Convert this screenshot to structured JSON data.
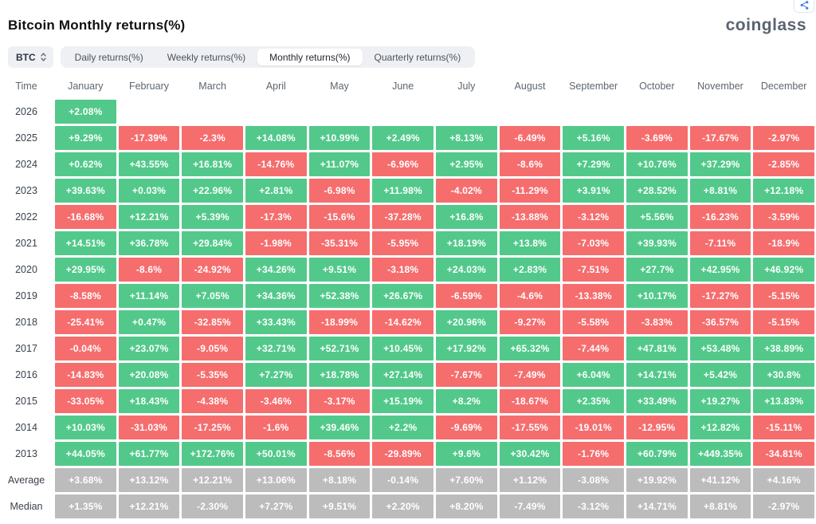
{
  "header": {
    "title": "Bitcoin Monthly returns(%)",
    "logo": "coinglass"
  },
  "controls": {
    "symbol_selector": {
      "value": "BTC"
    },
    "tabs": [
      {
        "label": "Daily returns(%)",
        "active": false
      },
      {
        "label": "Weekly returns(%)",
        "active": false
      },
      {
        "label": "Monthly returns(%)",
        "active": true
      },
      {
        "label": "Quarterly returns(%)",
        "active": false
      }
    ]
  },
  "chart_data": {
    "type": "heatmap",
    "title": "Bitcoin Monthly returns(%)",
    "columns": [
      "Time",
      "January",
      "February",
      "March",
      "April",
      "May",
      "June",
      "July",
      "August",
      "September",
      "October",
      "November",
      "December"
    ],
    "colors": {
      "positive": "#52c98a",
      "negative": "#f66d6e",
      "neutral": "#bcbcbc"
    },
    "rows": [
      {
        "label": "2026",
        "neutral": false,
        "values": [
          "+2.08%",
          null,
          null,
          null,
          null,
          null,
          null,
          null,
          null,
          null,
          null,
          null
        ]
      },
      {
        "label": "2025",
        "neutral": false,
        "values": [
          "+9.29%",
          "-17.39%",
          "-2.3%",
          "+14.08%",
          "+10.99%",
          "+2.49%",
          "+8.13%",
          "-6.49%",
          "+5.16%",
          "-3.69%",
          "-17.67%",
          "-2.97%"
        ]
      },
      {
        "label": "2024",
        "neutral": false,
        "values": [
          "+0.62%",
          "+43.55%",
          "+16.81%",
          "-14.76%",
          "+11.07%",
          "-6.96%",
          "+2.95%",
          "-8.6%",
          "+7.29%",
          "+10.76%",
          "+37.29%",
          "-2.85%"
        ]
      },
      {
        "label": "2023",
        "neutral": false,
        "values": [
          "+39.63%",
          "+0.03%",
          "+22.96%",
          "+2.81%",
          "-6.98%",
          "+11.98%",
          "-4.02%",
          "-11.29%",
          "+3.91%",
          "+28.52%",
          "+8.81%",
          "+12.18%"
        ]
      },
      {
        "label": "2022",
        "neutral": false,
        "values": [
          "-16.68%",
          "+12.21%",
          "+5.39%",
          "-17.3%",
          "-15.6%",
          "-37.28%",
          "+16.8%",
          "-13.88%",
          "-3.12%",
          "+5.56%",
          "-16.23%",
          "-3.59%"
        ]
      },
      {
        "label": "2021",
        "neutral": false,
        "values": [
          "+14.51%",
          "+36.78%",
          "+29.84%",
          "-1.98%",
          "-35.31%",
          "-5.95%",
          "+18.19%",
          "+13.8%",
          "-7.03%",
          "+39.93%",
          "-7.11%",
          "-18.9%"
        ]
      },
      {
        "label": "2020",
        "neutral": false,
        "values": [
          "+29.95%",
          "-8.6%",
          "-24.92%",
          "+34.26%",
          "+9.51%",
          "-3.18%",
          "+24.03%",
          "+2.83%",
          "-7.51%",
          "+27.7%",
          "+42.95%",
          "+46.92%"
        ]
      },
      {
        "label": "2019",
        "neutral": false,
        "values": [
          "-8.58%",
          "+11.14%",
          "+7.05%",
          "+34.36%",
          "+52.38%",
          "+26.67%",
          "-6.59%",
          "-4.6%",
          "-13.38%",
          "+10.17%",
          "-17.27%",
          "-5.15%"
        ]
      },
      {
        "label": "2018",
        "neutral": false,
        "values": [
          "-25.41%",
          "+0.47%",
          "-32.85%",
          "+33.43%",
          "-18.99%",
          "-14.62%",
          "+20.96%",
          "-9.27%",
          "-5.58%",
          "-3.83%",
          "-36.57%",
          "-5.15%"
        ]
      },
      {
        "label": "2017",
        "neutral": false,
        "values": [
          "-0.04%",
          "+23.07%",
          "-9.05%",
          "+32.71%",
          "+52.71%",
          "+10.45%",
          "+17.92%",
          "+65.32%",
          "-7.44%",
          "+47.81%",
          "+53.48%",
          "+38.89%"
        ]
      },
      {
        "label": "2016",
        "neutral": false,
        "values": [
          "-14.83%",
          "+20.08%",
          "-5.35%",
          "+7.27%",
          "+18.78%",
          "+27.14%",
          "-7.67%",
          "-7.49%",
          "+6.04%",
          "+14.71%",
          "+5.42%",
          "+30.8%"
        ]
      },
      {
        "label": "2015",
        "neutral": false,
        "values": [
          "-33.05%",
          "+18.43%",
          "-4.38%",
          "-3.46%",
          "-3.17%",
          "+15.19%",
          "+8.2%",
          "-18.67%",
          "+2.35%",
          "+33.49%",
          "+19.27%",
          "+13.83%"
        ]
      },
      {
        "label": "2014",
        "neutral": false,
        "values": [
          "+10.03%",
          "-31.03%",
          "-17.25%",
          "-1.6%",
          "+39.46%",
          "+2.2%",
          "-9.69%",
          "-17.55%",
          "-19.01%",
          "-12.95%",
          "+12.82%",
          "-15.11%"
        ]
      },
      {
        "label": "2013",
        "neutral": false,
        "values": [
          "+44.05%",
          "+61.77%",
          "+172.76%",
          "+50.01%",
          "-8.56%",
          "-29.89%",
          "+9.6%",
          "+30.42%",
          "-1.76%",
          "+60.79%",
          "+449.35%",
          "-34.81%"
        ]
      },
      {
        "label": "Average",
        "neutral": true,
        "values": [
          "+3.68%",
          "+13.12%",
          "+12.21%",
          "+13.06%",
          "+8.18%",
          "-0.14%",
          "+7.60%",
          "+1.12%",
          "-3.08%",
          "+19.92%",
          "+41.12%",
          "+4.16%"
        ]
      },
      {
        "label": "Median",
        "neutral": true,
        "values": [
          "+1.35%",
          "+12.21%",
          "-2.30%",
          "+7.27%",
          "+9.51%",
          "+2.20%",
          "+8.20%",
          "-7.49%",
          "-3.12%",
          "+14.71%",
          "+8.81%",
          "-2.97%"
        ]
      }
    ]
  }
}
